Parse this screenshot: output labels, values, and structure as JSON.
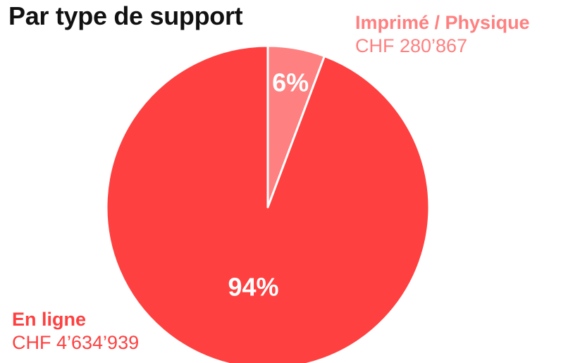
{
  "chart_data": {
    "type": "pie",
    "title": "Par type de support",
    "slices": [
      {
        "name": "Imprimé / Physique",
        "value_label": "CHF 280’867",
        "value": 280867,
        "percent_label": "6%",
        "color": "#ff8080"
      },
      {
        "name": "En ligne",
        "value_label": "CHF 4’634’939",
        "value": 4634939,
        "percent_label": "94%",
        "color": "#ff4040"
      }
    ]
  }
}
